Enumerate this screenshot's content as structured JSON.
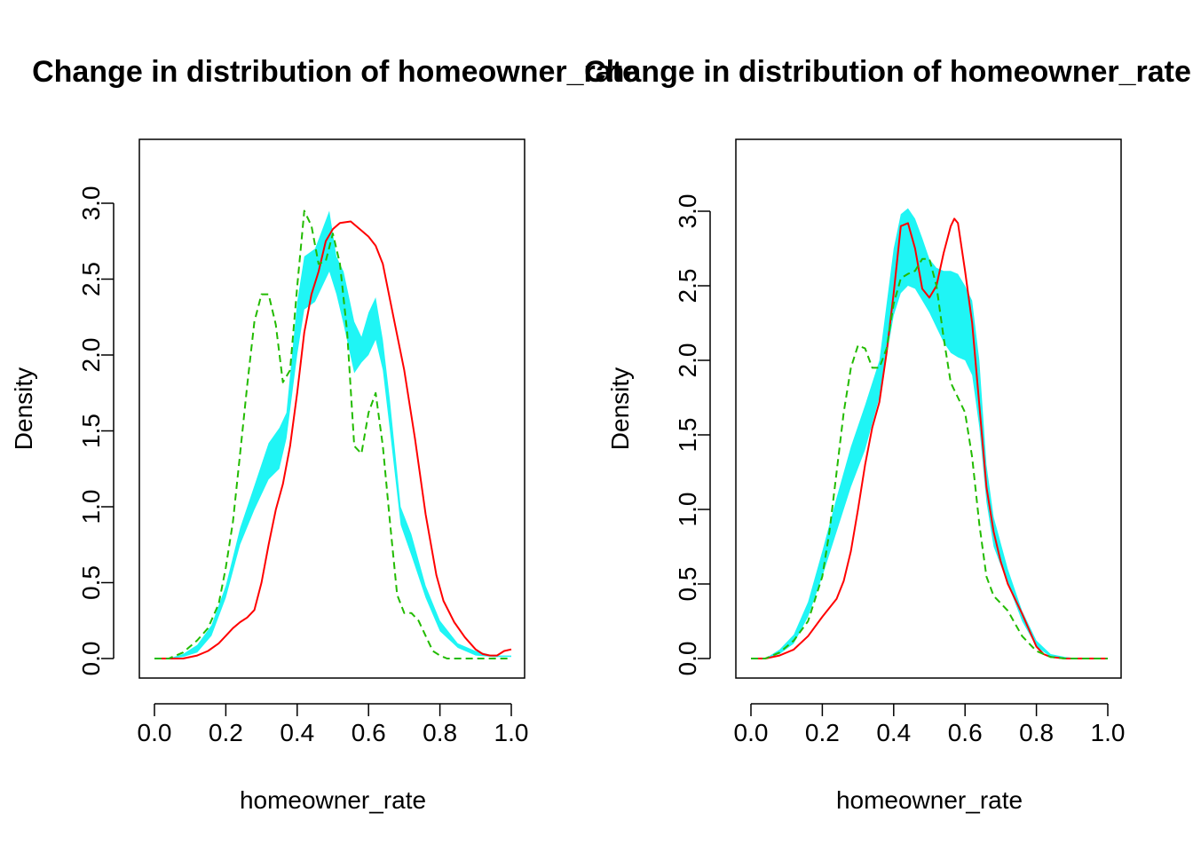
{
  "chart_data": [
    {
      "type": "line",
      "title": "Change in distribution of homeowner_rate",
      "xlabel": "homeowner_rate",
      "ylabel": "Density",
      "xlim": [
        0,
        1
      ],
      "ylim": [
        0,
        3.3
      ],
      "xticks": [
        "0.0",
        "0.2",
        "0.4",
        "0.6",
        "0.8",
        "1.0"
      ],
      "yticks": [
        "0.0",
        "0.5",
        "1.0",
        "1.5",
        "2.0",
        "2.5",
        "3.0"
      ],
      "grid": false,
      "band": {
        "color": "#1ff5f5",
        "x": [
          0.04,
          0.08,
          0.12,
          0.16,
          0.2,
          0.24,
          0.28,
          0.32,
          0.35,
          0.37,
          0.4,
          0.42,
          0.45,
          0.49,
          0.51,
          0.53,
          0.56,
          0.58,
          0.6,
          0.62,
          0.64,
          0.66,
          0.69,
          0.72,
          0.76,
          0.8,
          0.85,
          0.9,
          0.95,
          1.0
        ],
        "lower": [
          0.0,
          0.01,
          0.04,
          0.15,
          0.4,
          0.75,
          0.98,
          1.18,
          1.25,
          1.45,
          2.0,
          2.3,
          2.35,
          2.55,
          2.4,
          2.2,
          1.88,
          1.95,
          2.0,
          2.1,
          1.9,
          1.5,
          0.88,
          0.68,
          0.4,
          0.18,
          0.07,
          0.02,
          0.01,
          0.01
        ],
        "upper": [
          0.0,
          0.03,
          0.09,
          0.22,
          0.48,
          0.86,
          1.14,
          1.42,
          1.52,
          1.62,
          2.35,
          2.65,
          2.7,
          2.95,
          2.65,
          2.55,
          2.22,
          2.12,
          2.28,
          2.38,
          2.1,
          1.7,
          1.0,
          0.82,
          0.48,
          0.25,
          0.1,
          0.05,
          0.02,
          0.02
        ]
      },
      "series": [
        {
          "color": "#ff0000",
          "dash": "solid",
          "x": [
            0.0,
            0.04,
            0.08,
            0.12,
            0.15,
            0.18,
            0.2,
            0.22,
            0.24,
            0.26,
            0.28,
            0.3,
            0.32,
            0.34,
            0.36,
            0.38,
            0.4,
            0.42,
            0.44,
            0.46,
            0.48,
            0.5,
            0.52,
            0.55,
            0.58,
            0.6,
            0.62,
            0.64,
            0.67,
            0.7,
            0.73,
            0.76,
            0.79,
            0.81,
            0.84,
            0.87,
            0.9,
            0.92,
            0.94,
            0.96,
            0.98,
            1.0
          ],
          "y": [
            0.0,
            0.0,
            0.0,
            0.02,
            0.05,
            0.1,
            0.15,
            0.2,
            0.24,
            0.27,
            0.32,
            0.5,
            0.75,
            0.98,
            1.15,
            1.4,
            1.75,
            2.15,
            2.4,
            2.55,
            2.75,
            2.83,
            2.87,
            2.88,
            2.82,
            2.78,
            2.72,
            2.6,
            2.25,
            1.9,
            1.45,
            0.95,
            0.55,
            0.38,
            0.24,
            0.14,
            0.06,
            0.03,
            0.02,
            0.02,
            0.05,
            0.06
          ]
        },
        {
          "color": "#22bb00",
          "dash": "dashed",
          "x": [
            0.0,
            0.04,
            0.08,
            0.12,
            0.15,
            0.18,
            0.2,
            0.22,
            0.24,
            0.26,
            0.28,
            0.3,
            0.32,
            0.34,
            0.36,
            0.38,
            0.4,
            0.42,
            0.44,
            0.46,
            0.48,
            0.5,
            0.52,
            0.54,
            0.56,
            0.58,
            0.6,
            0.62,
            0.64,
            0.66,
            0.68,
            0.7,
            0.72,
            0.74,
            0.76,
            0.78,
            0.8,
            0.82,
            0.85,
            0.9,
            0.95,
            1.0
          ],
          "y": [
            0.0,
            0.0,
            0.04,
            0.12,
            0.2,
            0.36,
            0.6,
            0.9,
            1.35,
            1.8,
            2.22,
            2.4,
            2.4,
            2.2,
            1.82,
            1.9,
            2.45,
            2.95,
            2.85,
            2.6,
            2.62,
            2.8,
            2.6,
            2.15,
            1.4,
            1.35,
            1.62,
            1.75,
            1.4,
            0.9,
            0.42,
            0.3,
            0.3,
            0.25,
            0.15,
            0.05,
            0.02,
            0.0,
            0.0,
            0.0,
            0.0,
            0.0
          ]
        }
      ]
    },
    {
      "type": "line",
      "title": "Change in distribution of homeowner_rate",
      "xlabel": "homeowner_rate",
      "ylabel": "Density",
      "xlim": [
        0,
        1
      ],
      "ylim": [
        0,
        3.3
      ],
      "xticks": [
        "0.0",
        "0.2",
        "0.4",
        "0.6",
        "0.8",
        "1.0"
      ],
      "yticks": [
        "0.0",
        "0.5",
        "1.0",
        "1.5",
        "2.0",
        "2.5",
        "3.0"
      ],
      "grid": false,
      "band": {
        "color": "#1ff5f5",
        "x": [
          0.04,
          0.08,
          0.12,
          0.16,
          0.2,
          0.24,
          0.28,
          0.32,
          0.36,
          0.4,
          0.42,
          0.44,
          0.46,
          0.48,
          0.5,
          0.52,
          0.54,
          0.56,
          0.58,
          0.6,
          0.62,
          0.64,
          0.66,
          0.68,
          0.72,
          0.76,
          0.8,
          0.84,
          0.88,
          0.92,
          1.0
        ],
        "lower": [
          0.0,
          0.03,
          0.1,
          0.28,
          0.55,
          0.85,
          1.15,
          1.4,
          1.75,
          2.3,
          2.45,
          2.5,
          2.48,
          2.4,
          2.32,
          2.22,
          2.12,
          2.05,
          2.02,
          2.0,
          1.9,
          1.55,
          1.05,
          0.75,
          0.5,
          0.25,
          0.08,
          0.01,
          0.0,
          0.0,
          0.0
        ],
        "upper": [
          0.0,
          0.06,
          0.16,
          0.38,
          0.72,
          1.08,
          1.42,
          1.7,
          2.0,
          2.75,
          2.98,
          3.02,
          2.95,
          2.82,
          2.68,
          2.62,
          2.6,
          2.6,
          2.58,
          2.5,
          2.4,
          2.0,
          1.3,
          0.95,
          0.6,
          0.32,
          0.12,
          0.03,
          0.01,
          0.0,
          0.0
        ]
      },
      "series": [
        {
          "color": "#ff0000",
          "dash": "solid",
          "x": [
            0.0,
            0.04,
            0.08,
            0.12,
            0.16,
            0.2,
            0.24,
            0.26,
            0.28,
            0.3,
            0.32,
            0.34,
            0.36,
            0.38,
            0.4,
            0.42,
            0.44,
            0.46,
            0.48,
            0.5,
            0.52,
            0.54,
            0.56,
            0.57,
            0.58,
            0.6,
            0.62,
            0.64,
            0.66,
            0.68,
            0.7,
            0.72,
            0.76,
            0.8,
            0.82,
            0.84,
            0.88,
            0.92,
            1.0
          ],
          "y": [
            0.0,
            0.0,
            0.02,
            0.06,
            0.15,
            0.28,
            0.4,
            0.52,
            0.72,
            1.0,
            1.3,
            1.55,
            1.72,
            2.05,
            2.45,
            2.9,
            2.92,
            2.75,
            2.48,
            2.42,
            2.5,
            2.72,
            2.9,
            2.95,
            2.92,
            2.6,
            2.25,
            1.7,
            1.15,
            0.85,
            0.65,
            0.5,
            0.3,
            0.08,
            0.03,
            0.01,
            0.0,
            0.0,
            0.0
          ]
        },
        {
          "color": "#22bb00",
          "dash": "dashed",
          "x": [
            0.0,
            0.04,
            0.08,
            0.12,
            0.16,
            0.2,
            0.22,
            0.24,
            0.26,
            0.28,
            0.3,
            0.32,
            0.34,
            0.36,
            0.38,
            0.4,
            0.42,
            0.44,
            0.46,
            0.48,
            0.5,
            0.52,
            0.54,
            0.56,
            0.58,
            0.6,
            0.62,
            0.64,
            0.66,
            0.68,
            0.72,
            0.76,
            0.8,
            0.84,
            0.88,
            0.92,
            1.0
          ],
          "y": [
            0.0,
            0.0,
            0.04,
            0.12,
            0.25,
            0.55,
            0.85,
            1.25,
            1.65,
            1.95,
            2.1,
            2.08,
            1.95,
            1.95,
            2.08,
            2.38,
            2.55,
            2.58,
            2.6,
            2.68,
            2.68,
            2.5,
            2.15,
            1.85,
            1.75,
            1.65,
            1.35,
            0.9,
            0.55,
            0.42,
            0.32,
            0.15,
            0.05,
            0.01,
            0.0,
            0.0,
            0.0
          ]
        }
      ]
    }
  ]
}
